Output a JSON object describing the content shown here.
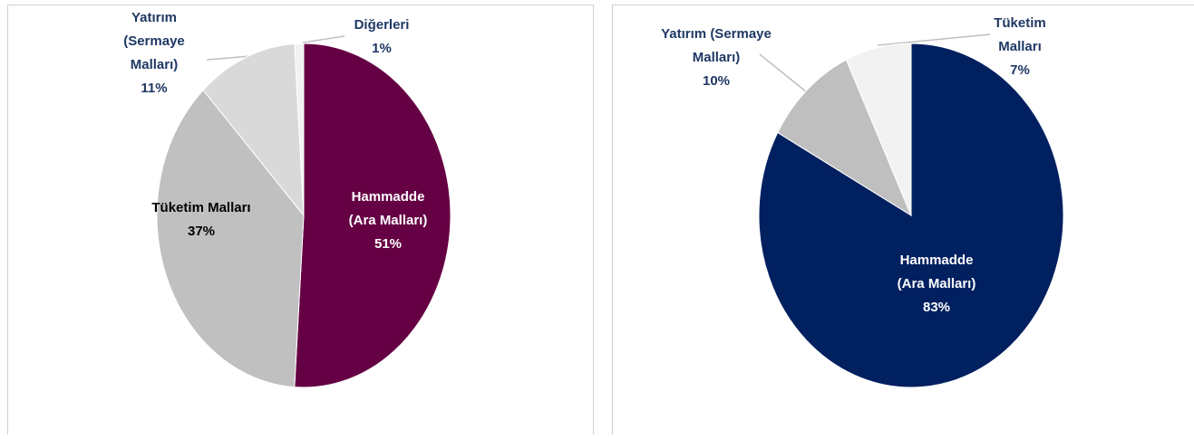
{
  "chart_data": [
    {
      "type": "pie",
      "categories": [
        "Hammadde\n(Ara Malları)",
        "Tüketim Malları",
        "Yatırım\n(Sermaye\nMalları)",
        "Diğerleri"
      ],
      "values": [
        51,
        37,
        11,
        1
      ],
      "value_labels": [
        "51%",
        "37%",
        "11%",
        "1%"
      ],
      "colors": [
        "#660044",
        "#c0c0c0",
        "#d9d9d9",
        "#f2f2f2"
      ]
    },
    {
      "type": "pie",
      "categories": [
        "Hammadde\n(Ara Malları)",
        "Yatırım (Sermaye\nMalları)",
        "Tüketim\nMalları"
      ],
      "values": [
        83,
        10,
        7
      ],
      "value_labels": [
        "83%",
        "10%",
        "7%"
      ],
      "colors": [
        "#002060",
        "#bfbfbf",
        "#f2f2f2"
      ]
    }
  ]
}
